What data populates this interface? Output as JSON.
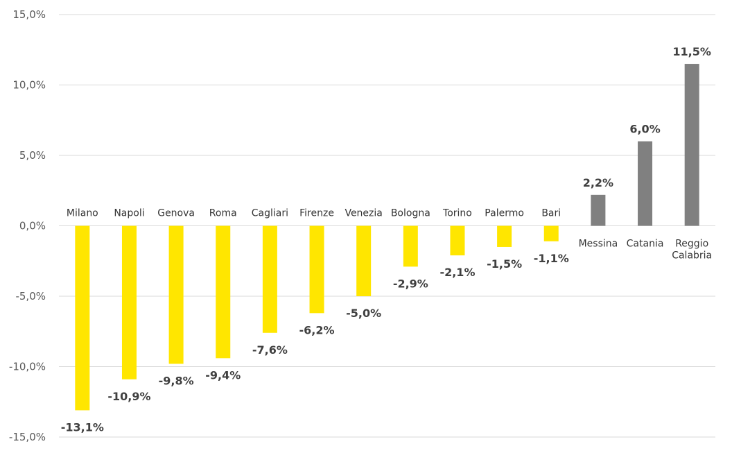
{
  "chart_data": {
    "type": "bar",
    "categories": [
      "Milano",
      "Napoli",
      "Genova",
      "Roma",
      "Cagliari",
      "Firenze",
      "Venezia",
      "Bologna",
      "Torino",
      "Palermo",
      "Bari",
      "Messina",
      "Catania",
      "Reggio Calabria"
    ],
    "category_lines": [
      [
        "Milano"
      ],
      [
        "Napoli"
      ],
      [
        "Genova"
      ],
      [
        "Roma"
      ],
      [
        "Cagliari"
      ],
      [
        "Firenze"
      ],
      [
        "Venezia"
      ],
      [
        "Bologna"
      ],
      [
        "Torino"
      ],
      [
        "Palermo"
      ],
      [
        "Bari"
      ],
      [
        "Messina"
      ],
      [
        "Catania"
      ],
      [
        "Reggio",
        "Calabria"
      ]
    ],
    "values": [
      -13.1,
      -10.9,
      -9.8,
      -9.4,
      -7.6,
      -6.2,
      -5.0,
      -2.9,
      -2.1,
      -1.5,
      -1.1,
      2.2,
      6.0,
      11.5
    ],
    "data_labels": [
      "-13,1%",
      "-10,9%",
      "-9,8%",
      "-9,4%",
      "-7,6%",
      "-6,2%",
      "-5,0%",
      "-2,9%",
      "-2,1%",
      "-1,5%",
      "-1,1%",
      "2,2%",
      "6,0%",
      "11,5%"
    ],
    "y_ticks": [
      15,
      10,
      5,
      0,
      -5,
      -10,
      -15
    ],
    "y_tick_labels": [
      "15,0%",
      "10,0%",
      "5,0%",
      "0,0%",
      "-5,0%",
      "-10,0%",
      "-15,0%"
    ],
    "ylim": [
      -15,
      15
    ],
    "grid": true,
    "legend": "none",
    "title": "",
    "xlabel": "",
    "ylabel": "",
    "colors": {
      "negative": "#ffe600",
      "positive": "#808080",
      "grid": "#d9d9d9"
    }
  }
}
